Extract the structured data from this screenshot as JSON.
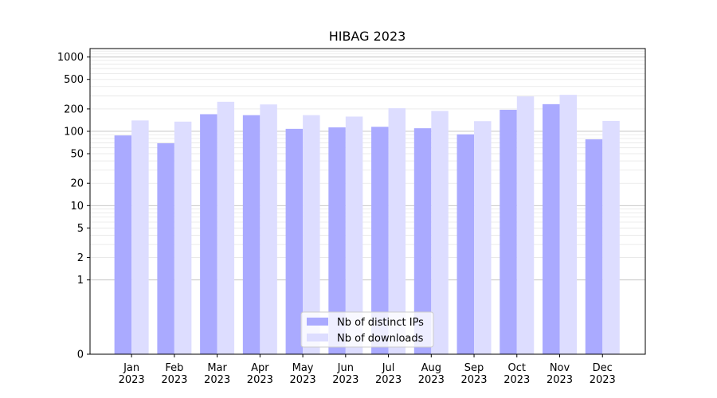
{
  "chart_data": {
    "type": "bar",
    "title": "HIBAG 2023",
    "xlabel": "",
    "ylabel": "",
    "y_scale": "symlog",
    "ylim": [
      0,
      1300
    ],
    "y_ticks": [
      0,
      1,
      2,
      5,
      10,
      20,
      50,
      100,
      200,
      500,
      1000
    ],
    "y_tick_labels": [
      "0",
      "1",
      "2",
      "5",
      "10",
      "20",
      "50",
      "100",
      "200",
      "500",
      "1000"
    ],
    "categories": [
      [
        "Jan",
        "2023"
      ],
      [
        "Feb",
        "2023"
      ],
      [
        "Mar",
        "2023"
      ],
      [
        "Apr",
        "2023"
      ],
      [
        "May",
        "2023"
      ],
      [
        "Jun",
        "2023"
      ],
      [
        "Jul",
        "2023"
      ],
      [
        "Aug",
        "2023"
      ],
      [
        "Sep",
        "2023"
      ],
      [
        "Oct",
        "2023"
      ],
      [
        "Nov",
        "2023"
      ],
      [
        "Dec",
        "2023"
      ]
    ],
    "series": [
      {
        "name": "Nb of distinct IPs",
        "color": "#aaaaff",
        "values": [
          88,
          69,
          170,
          165,
          108,
          113,
          115,
          110,
          91,
          195,
          232,
          78
        ]
      },
      {
        "name": "Nb of downloads",
        "color": "#ddddff",
        "values": [
          140,
          135,
          250,
          230,
          165,
          158,
          205,
          188,
          137,
          295,
          310,
          138
        ]
      }
    ],
    "grid": true,
    "legend_position": "bottom-center"
  }
}
